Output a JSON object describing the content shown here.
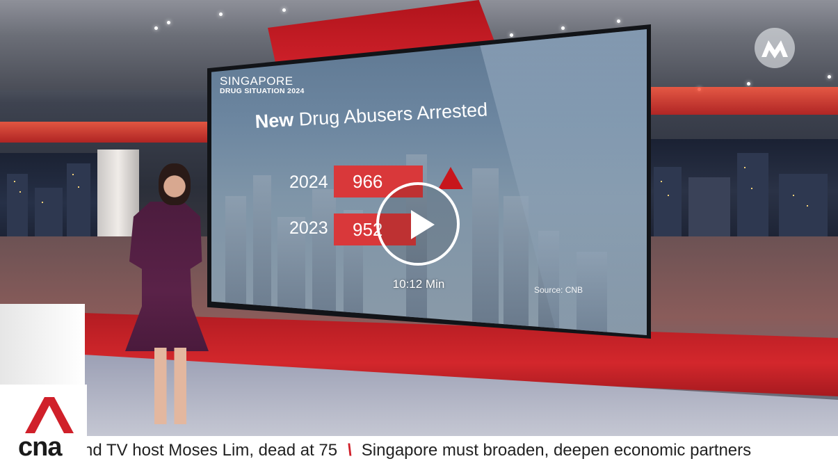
{
  "video": {
    "duration": "10:12 Min",
    "play_icon": "play-icon"
  },
  "graphic": {
    "country": "SINGAPORE",
    "topic": "DRUG SITUATION 2024",
    "title_bold": "New",
    "title_rest": " Drug Abusers Arrested",
    "rows": [
      {
        "year": "2024",
        "value": "966"
      },
      {
        "year": "2023",
        "value": "952"
      }
    ],
    "trend_icon": "up-arrow-icon",
    "source": "Source: CNB"
  },
  "ticker": {
    "brand": "cna",
    "item_1": "nd TV host Moses Lim, dead at 75",
    "item_2": "Singapore must broaden, deepen economic partners"
  },
  "colors": {
    "accent_red": "#d9383a",
    "brand_red": "#d0202a"
  }
}
